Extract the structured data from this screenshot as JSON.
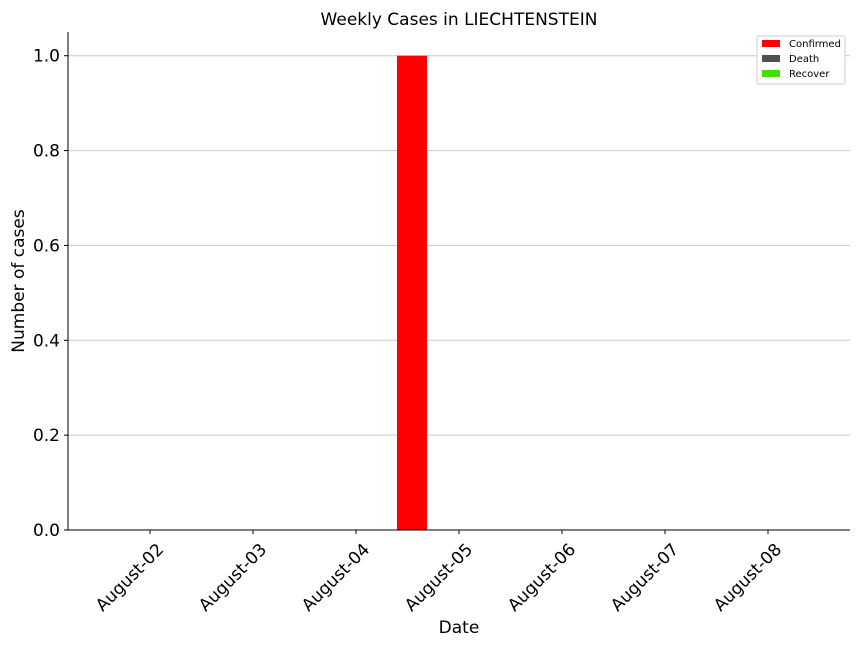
{
  "chart_data": {
    "type": "bar",
    "title": "Weekly Cases in LIECHTENSTEIN",
    "xlabel": "Date",
    "ylabel": "Number of cases",
    "categories": [
      "August-02",
      "August-03",
      "August-04",
      "August-05",
      "August-06",
      "August-07",
      "August-08"
    ],
    "series": [
      {
        "name": "Confirmed",
        "color": "#ff0000",
        "values": [
          0,
          0,
          1,
          0,
          0,
          0,
          0
        ]
      },
      {
        "name": "Death",
        "color": "#505050",
        "values": [
          0,
          0,
          0,
          0,
          0,
          0,
          0
        ]
      },
      {
        "name": "Recover",
        "color": "#44dd00",
        "values": [
          0,
          0,
          0,
          0,
          0,
          0,
          0
        ]
      }
    ],
    "ylim": [
      0,
      1.05
    ],
    "yticks": [
      "0.0",
      "0.2",
      "0.4",
      "0.6",
      "0.8",
      "1.0"
    ],
    "grid": "horizontal",
    "legend": "top-right"
  }
}
